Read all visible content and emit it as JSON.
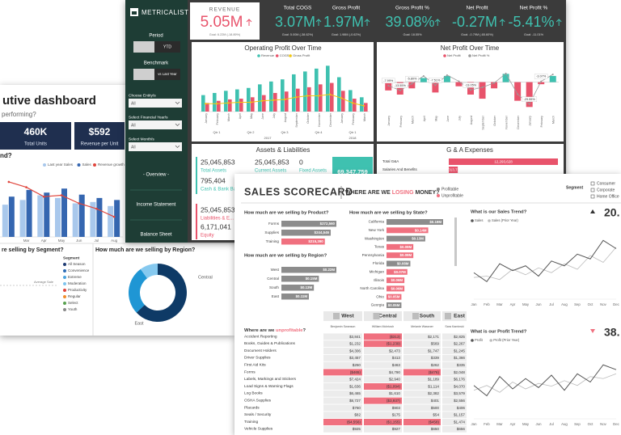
{
  "exec": {
    "title": "utive dashboard",
    "subtitle": "performing?",
    "kpis": [
      {
        "value": "460K",
        "label": "Total Units"
      },
      {
        "value": "$592",
        "label": "Revenue per Unit"
      }
    ],
    "trend": {
      "type": "bar",
      "title": "nd?",
      "categories": [
        null,
        "Mar",
        "Apr",
        "May",
        "Jun",
        "Jul",
        "Aug"
      ],
      "series": [
        {
          "name": "Last year Sales",
          "color": "#a9c8ec",
          "values": [
            48,
            55,
            62,
            58,
            50,
            52,
            46
          ]
        },
        {
          "name": "Sales",
          "color": "#3566b0",
          "values": [
            60,
            70,
            66,
            72,
            63,
            58,
            55
          ]
        },
        {
          "name": "Revenue growth rate",
          "color": "#e0463d",
          "values": [
            82,
            74,
            60,
            62,
            50,
            42,
            30
          ]
        }
      ],
      "ylim": [
        0,
        100
      ]
    },
    "segment": {
      "title": "re selling by Segment?",
      "annotation": "Average Sale",
      "legend_title": "Segment",
      "items": [
        {
          "name": "All Season",
          "color": "#1f3b73"
        },
        {
          "name": "Convenience",
          "color": "#2f6db5"
        },
        {
          "name": "Extreme",
          "color": "#4aa3df"
        },
        {
          "name": "Moderation",
          "color": "#7ec4ee"
        },
        {
          "name": "Productivity",
          "color": "#e0463d"
        },
        {
          "name": "Regular",
          "color": "#f28e2b"
        },
        {
          "name": "Select",
          "color": "#59a14f"
        },
        {
          "name": "Youth",
          "color": "#8a8a8a"
        }
      ]
    },
    "region": {
      "type": "pie",
      "title": "How much are we selling by Region?",
      "categories": [
        "Central",
        "East",
        null
      ],
      "values": [
        63,
        27,
        10
      ],
      "colors": [
        "#0e3a66",
        "#1f96d4",
        "#86c9ef"
      ]
    }
  },
  "metricalist": {
    "brand": "METRICALIST",
    "sidebar": {
      "period": "Period",
      "period_option": "YTD",
      "benchmark": "Benchmark",
      "benchmark_option": "vs Last Year",
      "filters": [
        {
          "label": "Choose Entity/s",
          "value": "All"
        },
        {
          "label": "Select Financial Year/s",
          "value": "All"
        },
        {
          "label": "Select Month/s",
          "value": "All"
        }
      ],
      "nav": [
        "- Overview -",
        "Income Statement",
        "Balance Sheet"
      ]
    },
    "kpis": [
      {
        "title": "REVENUE",
        "value": "5.05M",
        "goal": "Goal: 6.22M (-18.89%)"
      },
      {
        "title": "Total COGS",
        "value": "3.07M",
        "goal": "Goal: 5.00M (-38.62%)"
      },
      {
        "title": "Gross Profit",
        "value": "1.97M",
        "goal": "Goal: 1.98M (-0.62%)"
      },
      {
        "title": "Gross Profit %",
        "value": "39.08%",
        "goal": "Goal: 18.55%"
      },
      {
        "title": "Net Profit",
        "value": "-0.27M",
        "goal": "Goal: -0.79M (-65.60%)"
      },
      {
        "title": "Net Profit %",
        "value": "-5.41%",
        "goal": "Goal: -11.01%"
      }
    ],
    "operating_profit": {
      "type": "bar",
      "title": "Operating Profit Over Time",
      "categories": [
        "January",
        "February",
        "March",
        "April",
        "May",
        "June",
        "July",
        "August",
        "September",
        "October",
        "November",
        "December",
        "January",
        "February",
        "March"
      ],
      "quarters": [
        "Qtr 1",
        "Qtr 2",
        "Qtr 3",
        "Qtr 4",
        "Qtr 1"
      ],
      "years": [
        "2017",
        "2018"
      ],
      "series": [
        {
          "name": "Revenue",
          "color": "#3fc1b0",
          "values": [
            230,
            260,
            290,
            310,
            330,
            380,
            420,
            450,
            520,
            560,
            600,
            640,
            480,
            300,
            200
          ]
        },
        {
          "name": "COGS",
          "color": "#e8536b",
          "values": [
            120,
            150,
            170,
            180,
            200,
            230,
            260,
            280,
            320,
            340,
            380,
            400,
            290,
            180,
            120
          ]
        },
        {
          "name": "Gross Profit",
          "color": "#f2c811",
          "values": [
            110,
            110,
            120,
            130,
            130,
            150,
            160,
            170,
            200,
            220,
            220,
            240,
            190,
            120,
            80
          ]
        }
      ],
      "ylim": [
        0,
        700
      ]
    },
    "net_profit": {
      "type": "bar",
      "title": "Net Profit Over Time",
      "categories": [
        "January",
        "February",
        "March",
        "April",
        "May",
        "June",
        "July",
        "August",
        "September",
        "October",
        "November",
        "December",
        "January",
        "February",
        "March"
      ],
      "series": [
        {
          "name": "Net Profit",
          "color": "#e8536b",
          "color_positive": "#3fc1b0",
          "values": [
            -40,
            -60,
            -30,
            20,
            -50,
            30,
            -20,
            -60,
            -80,
            -30,
            40,
            -90,
            -120,
            -10,
            30
          ]
        },
        {
          "name": "Net Profit %",
          "color": "#9a9a9a",
          "axis": "y2",
          "values": [
            -7.99,
            -13.55,
            -5.8,
            3.1,
            -7.51,
            4.2,
            -3.0,
            -13.05,
            -10,
            -5,
            6,
            -18,
            -29.55,
            -3.07,
            5
          ],
          "value_labels": [
            "-7.99%",
            "-13.55%",
            "-5.80%",
            null,
            "-7.51%",
            null,
            null,
            "-13.05%",
            null,
            null,
            null,
            null,
            "-29.55%",
            "-3.07%",
            null
          ]
        }
      ],
      "ylim": [
        -150,
        100
      ],
      "y2lim": [
        -40,
        20
      ]
    },
    "assets": {
      "title": "Assets & Liabilities",
      "items": [
        {
          "value": "25,045,853",
          "label": "Total Assets"
        },
        {
          "value": "25,045,853",
          "label": "Current Assets"
        },
        {
          "value": "0",
          "label": "Fixed Assets"
        },
        {
          "value": "795,404",
          "label": "Cash & Bank Ba..."
        }
      ],
      "highlight": "69,347,759",
      "liabilities": [
        {
          "value": "25,045,853",
          "label": "Liabilities & E..."
        },
        {
          "value": "6,171,041",
          "label": "Equity"
        }
      ]
    },
    "ga_expenses": {
      "type": "bar",
      "title": "G & A Expenses",
      "categories": [
        "Total G&A",
        "Salaries And Benefits"
      ],
      "values": [
        12293628,
        1013710
      ],
      "value_labels": [
        "12,293,628",
        "1,013,710"
      ],
      "color": "#e8536b"
    }
  },
  "scorecard": {
    "title": "SALES SCORECARD",
    "question": [
      "WHERE ARE WE",
      "LOSING",
      "MONEY?"
    ],
    "legend": [
      {
        "name": "Profitable",
        "color": "#8c8c8c"
      },
      {
        "name": "Unprofitable",
        "color": "#f0707f"
      }
    ],
    "segment_legend": {
      "title": "Segment",
      "items": [
        "Consumer",
        "Corporate",
        "Home Office"
      ]
    },
    "product": {
      "type": "bar",
      "title": "How much are we selling by Product?",
      "categories": [
        "Forms",
        "Supplies",
        "Training"
      ],
      "values": [
        272560,
        244546,
        215390
      ],
      "value_labels": [
        "$272,560",
        "$244,546",
        "$215,390"
      ],
      "colors": [
        "#8c8c8c",
        "#8c8c8c",
        "#f0707f"
      ]
    },
    "region": {
      "type": "bar",
      "title": "How much are we selling by Region?",
      "categories": [
        "West",
        "Central",
        "South",
        "East"
      ],
      "values": [
        0.22,
        0.15,
        0.13,
        0.11
      ],
      "value_labels": [
        "$0.22M",
        "$0.15M",
        "$0.13M",
        "$0.11M"
      ],
      "colors": [
        "#8c8c8c",
        "#8c8c8c",
        "#8c8c8c",
        "#8c8c8c"
      ]
    },
    "state": {
      "type": "bar",
      "title": "How much are we selling by State?",
      "categories": [
        "California",
        "New York",
        "Washington",
        "Texas",
        "Pennsylvania",
        "Florida",
        "Michigan",
        "Illinois",
        "North Carolina",
        "Ohio",
        "Georgia"
      ],
      "values": [
        0.19,
        0.14,
        0.13,
        0.09,
        0.09,
        0.08,
        0.07,
        0.06,
        0.06,
        0.05,
        0.05
      ],
      "value_labels": [
        "$0.19M",
        "$0.14M",
        "$0.13M",
        "$0.09M",
        "$0.09M",
        "$0.08M",
        "$0.07M",
        "$0.06M",
        "$0.06M",
        "$0.05M",
        "$0.05M"
      ],
      "colors": [
        "#8c8c8c",
        "#f0707f",
        "#8c8c8c",
        "#f0707f",
        "#f0707f",
        "#8c8c8c",
        "#f0707f",
        "#f0707f",
        "#f0707f",
        "#f0707f",
        "#8c8c8c"
      ]
    },
    "sales_trend": {
      "type": "line",
      "title": "What is our Sales Trend?",
      "value": "20.",
      "categories": [
        "Jan",
        "Feb",
        "Mar",
        "Apr",
        "May",
        "Jun",
        "Jul",
        "Aug",
        "Sep",
        "Oct",
        "Nov",
        "Dec"
      ],
      "series": [
        {
          "name": "Sales",
          "color": "#555555",
          "values": [
            35,
            22,
            48,
            38,
            45,
            30,
            52,
            45,
            62,
            55,
            82,
            70
          ]
        },
        {
          "name": "Sales (Prior Year)",
          "color": "#bdbdbd",
          "values": [
            28,
            30,
            25,
            40,
            32,
            42,
            35,
            48,
            40,
            60,
            50,
            72
          ]
        }
      ],
      "ylim": [
        0,
        100
      ]
    },
    "profit_trend": {
      "type": "line",
      "title": "What is our Profit Trend?",
      "value": "38.",
      "categories": [
        "Jan",
        "Feb",
        "Mar",
        "Apr",
        "May",
        "Jun",
        "Jul",
        "Aug",
        "Sep",
        "Oct",
        "Nov",
        "Dec"
      ],
      "series": [
        {
          "name": "Profit",
          "color": "#555555",
          "values": [
            45,
            30,
            58,
            40,
            55,
            42,
            60,
            38,
            62,
            50,
            75,
            68
          ]
        },
        {
          "name": "Profit (Prior Year)",
          "color": "#bdbdbd",
          "values": [
            38,
            45,
            35,
            50,
            40,
            48,
            44,
            52,
            45,
            58,
            55,
            62
          ]
        }
      ],
      "ylim": [
        0,
        100
      ]
    },
    "table": {
      "title": [
        "Where are we",
        "unprofitable",
        "?"
      ],
      "regions": [
        "West",
        "Central",
        "South",
        "East"
      ],
      "managers": [
        "Benjamin Swanson",
        "William McIntosh",
        "Melanie Wassner",
        "Sara Kaminski"
      ],
      "rows": [
        [
          "Accident Reporting",
          "$3,841",
          "($313)",
          "$2,171",
          "$2,825"
        ],
        [
          "Books, Guides & Publications",
          "$1,232",
          "($1,239)",
          "$569",
          "$2,267"
        ],
        [
          "Document Holders",
          "$4,306",
          "$2,473",
          "$1,747",
          "$1,245"
        ],
        [
          "Driver Supplies",
          "$3,457",
          "$413",
          "$339",
          "$1,366"
        ],
        [
          "First Aid Kits",
          "$250",
          "$463",
          "$262",
          "$335"
        ],
        [
          "Forms",
          "($465)",
          "$4,790",
          "($476)",
          "$2,048"
        ],
        [
          "Labels, Markings and Stickers",
          "$7,424",
          "$2,940",
          "$1,189",
          "$6,176"
        ],
        [
          "Load Signs & Warning Flags",
          "$1,636",
          "($1,094)",
          "$1,114",
          "$4,070"
        ],
        [
          "Log Books",
          "$6,465",
          "$1,610",
          "$2,382",
          "$3,579"
        ],
        [
          "OSHA Supplies",
          "$8,727",
          "($3,937)",
          "$401",
          "$2,556"
        ],
        [
          "Placards",
          "$760",
          "$903",
          "$500",
          "$406"
        ],
        [
          "Seals / Security",
          "$82",
          "$175",
          "$54",
          "$1,157"
        ],
        [
          "Training",
          "($4,556)",
          "($1,155)",
          "($458)",
          "$1,474"
        ],
        [
          "Vehicle Supplies",
          "$925",
          "$927",
          "$650",
          "$656"
        ]
      ]
    }
  }
}
